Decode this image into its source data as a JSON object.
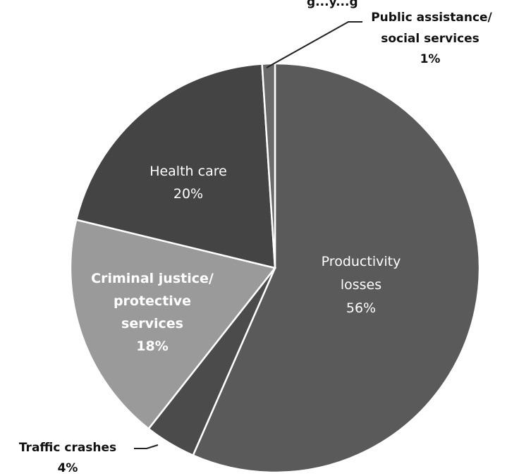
{
  "chart_data": {
    "type": "pie",
    "title": "",
    "slices": [
      {
        "key": "productivity",
        "lines": [
          "Productivity",
          "losses"
        ],
        "pct_label": "56%",
        "value": 56,
        "color": "#5a5a5a",
        "label_style": "inside-light"
      },
      {
        "key": "traffic",
        "lines": [
          "Traffic crashes"
        ],
        "pct_label": "4%",
        "value": 4,
        "color": "#4b4b4b",
        "label_style": "outside"
      },
      {
        "key": "criminal",
        "lines": [
          "Criminal justice/",
          "protective",
          "services"
        ],
        "pct_label": "18%",
        "value": 18,
        "color": "#9a9a9a",
        "label_style": "inside-bold"
      },
      {
        "key": "health",
        "lines": [
          "Health care"
        ],
        "pct_label": "20%",
        "value": 20,
        "color": "#444444",
        "label_style": "inside-light"
      },
      {
        "key": "public",
        "lines": [
          "Public assistance/",
          "social services"
        ],
        "pct_label": "1%",
        "value": 1,
        "color": "#6a6a6a",
        "label_style": "outside"
      }
    ],
    "start_angle_deg": 0,
    "direction": "clockwise",
    "legend": "none"
  },
  "top_clip_text": "g...y...g"
}
